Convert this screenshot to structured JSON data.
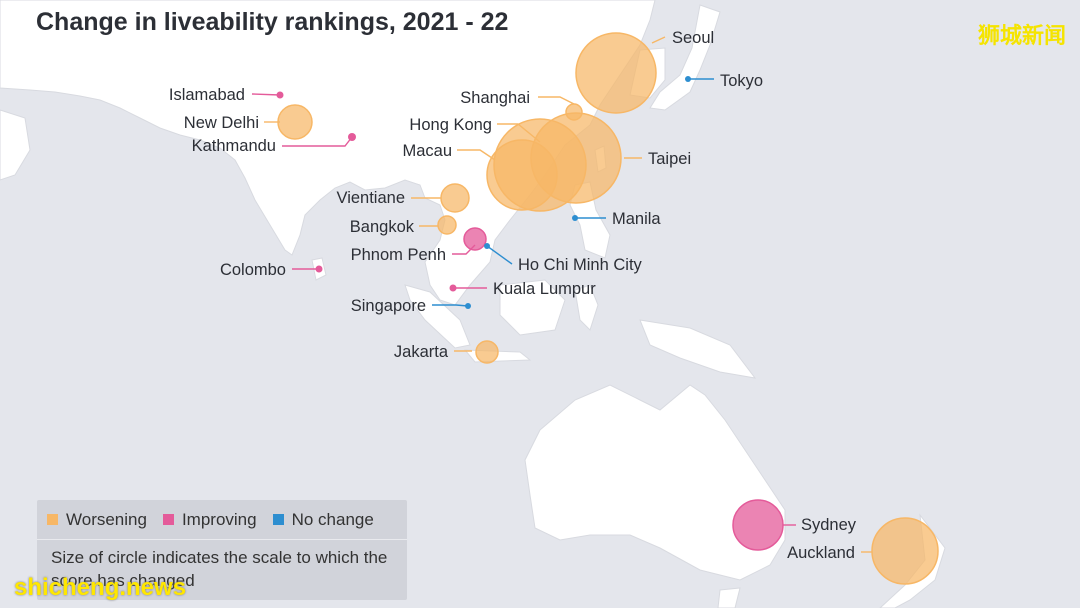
{
  "title": "Change in liveability rankings, 2021 - 22",
  "watermark_cn": "狮城新闻",
  "watermark_en": "shicheng.news",
  "colors": {
    "worsening": "#f7b766",
    "improving": "#e45b9a",
    "no_change": "#2d8ed0",
    "land": "#ffffff",
    "sea": "#e4e6ec"
  },
  "legend": {
    "worsening": "Worsening",
    "improving": "Improving",
    "no_change": "No change",
    "note": "Size of circle indicates the scale to which the score has changed"
  },
  "cities": [
    {
      "id": "seoul",
      "name": "Seoul",
      "status": "worsening",
      "magnitude": 40
    },
    {
      "id": "tokyo",
      "name": "Tokyo",
      "status": "no_change",
      "magnitude": 0
    },
    {
      "id": "shanghai",
      "name": "Shanghai",
      "status": "worsening",
      "magnitude": 8
    },
    {
      "id": "islamabad",
      "name": "Islamabad",
      "status": "improving",
      "magnitude": 3
    },
    {
      "id": "new-delhi",
      "name": "New Delhi",
      "status": "worsening",
      "magnitude": 17
    },
    {
      "id": "hong-kong",
      "name": "Hong Kong",
      "status": "worsening",
      "magnitude": 45
    },
    {
      "id": "kathmandu",
      "name": "Kathmandu",
      "status": "improving",
      "magnitude": 4
    },
    {
      "id": "macau",
      "name": "Macau",
      "status": "worsening",
      "magnitude": 35
    },
    {
      "id": "taipei",
      "name": "Taipei",
      "status": "worsening",
      "magnitude": 46
    },
    {
      "id": "vientiane",
      "name": "Vientiane",
      "status": "worsening",
      "magnitude": 14
    },
    {
      "id": "bangkok",
      "name": "Bangkok",
      "status": "worsening",
      "magnitude": 9
    },
    {
      "id": "manila",
      "name": "Manila",
      "status": "no_change",
      "magnitude": 0
    },
    {
      "id": "phnom-penh",
      "name": "Phnom Penh",
      "status": "improving",
      "magnitude": 11
    },
    {
      "id": "ho-chi-minh-city",
      "name": "Ho Chi Minh City",
      "status": "no_change",
      "magnitude": 0
    },
    {
      "id": "colombo",
      "name": "Colombo",
      "status": "improving",
      "magnitude": 3
    },
    {
      "id": "kuala-lumpur",
      "name": "Kuala Lumpur",
      "status": "improving",
      "magnitude": 3
    },
    {
      "id": "singapore",
      "name": "Singapore",
      "status": "no_change",
      "magnitude": 0
    },
    {
      "id": "jakarta",
      "name": "Jakarta",
      "status": "worsening",
      "magnitude": 11
    },
    {
      "id": "sydney",
      "name": "Sydney",
      "status": "improving",
      "magnitude": 25
    },
    {
      "id": "auckland",
      "name": "Auckland",
      "status": "worsening",
      "magnitude": 33
    }
  ]
}
